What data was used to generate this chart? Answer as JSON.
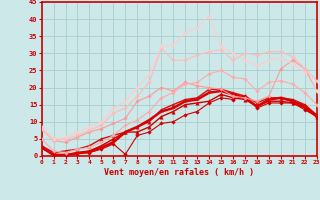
{
  "title": "",
  "xlabel": "Vent moyen/en rafales ( km/h )",
  "background_color": "#cce8e8",
  "grid_color": "#aacccc",
  "x_values": [
    0,
    1,
    2,
    3,
    4,
    5,
    6,
    7,
    8,
    9,
    10,
    11,
    12,
    13,
    14,
    15,
    16,
    17,
    18,
    19,
    20,
    21,
    22,
    23
  ],
  "ylim": [
    0,
    45
  ],
  "xlim": [
    0,
    23
  ],
  "yticks": [
    0,
    5,
    10,
    15,
    20,
    25,
    30,
    35,
    40,
    45
  ],
  "series": [
    {
      "y": [
        2.5,
        0.5,
        0.3,
        0.8,
        1.0,
        2.0,
        3.5,
        0.5,
        6.0,
        7.0,
        9.5,
        10.0,
        12.0,
        13.0,
        15.5,
        17.0,
        16.5,
        17.5,
        14.0,
        15.5,
        15.5,
        15.5,
        13.5,
        11.5
      ],
      "color": "#cc0000",
      "lw": 0.8,
      "marker": "D",
      "ms": 1.8
    },
    {
      "y": [
        2.5,
        0.5,
        0.3,
        1.0,
        1.5,
        3.0,
        5.0,
        7.0,
        7.0,
        8.5,
        11.5,
        13.0,
        15.0,
        15.5,
        16.0,
        18.0,
        17.0,
        16.5,
        14.5,
        16.0,
        16.0,
        15.5,
        14.0,
        11.5
      ],
      "color": "#cc0000",
      "lw": 1.0,
      "marker": "^",
      "ms": 2.5
    },
    {
      "y": [
        3.0,
        1.0,
        1.5,
        2.0,
        3.0,
        5.0,
        6.0,
        7.0,
        8.5,
        10.0,
        13.5,
        15.0,
        16.5,
        17.0,
        19.5,
        19.5,
        18.5,
        17.5,
        15.5,
        17.0,
        17.0,
        16.5,
        15.0,
        12.0
      ],
      "color": "#cc1111",
      "lw": 1.0,
      "marker": "^",
      "ms": 2.5
    },
    {
      "y": [
        2.5,
        0.3,
        0.3,
        0.8,
        1.2,
        2.5,
        4.0,
        7.0,
        8.5,
        10.5,
        13.0,
        14.0,
        16.0,
        16.5,
        18.5,
        19.0,
        18.0,
        17.0,
        14.5,
        16.5,
        17.0,
        16.0,
        14.5,
        11.5
      ],
      "color": "#dd0000",
      "lw": 1.8,
      "marker": null,
      "ms": 0
    },
    {
      "y": [
        8.0,
        4.5,
        4.0,
        5.5,
        7.0,
        8.0,
        9.5,
        11.0,
        16.0,
        17.5,
        20.0,
        19.0,
        21.5,
        20.5,
        20.0,
        19.5,
        17.5,
        17.0,
        16.0,
        17.5,
        25.5,
        28.0,
        25.5,
        19.0
      ],
      "color": "#ff9999",
      "lw": 0.8,
      "marker": "D",
      "ms": 1.8
    },
    {
      "y": [
        5.0,
        1.5,
        1.0,
        2.0,
        2.5,
        4.0,
        6.0,
        9.0,
        10.5,
        13.0,
        17.0,
        18.5,
        21.0,
        21.5,
        24.0,
        25.0,
        23.0,
        22.5,
        19.0,
        21.5,
        22.0,
        21.0,
        18.5,
        15.0
      ],
      "color": "#ffaaaa",
      "lw": 0.8,
      "marker": "D",
      "ms": 1.8
    },
    {
      "y": [
        8.0,
        4.5,
        5.0,
        6.0,
        7.5,
        9.0,
        12.5,
        14.0,
        17.5,
        21.5,
        31.5,
        28.0,
        28.0,
        29.5,
        30.5,
        31.0,
        28.0,
        30.0,
        29.5,
        30.5,
        30.5,
        29.0,
        25.5,
        22.0
      ],
      "color": "#ffbbbb",
      "lw": 0.8,
      "marker": "D",
      "ms": 1.8
    },
    {
      "y": [
        8.5,
        5.0,
        5.5,
        7.0,
        8.5,
        10.0,
        14.0,
        16.0,
        20.0,
        24.0,
        32.0,
        32.5,
        36.0,
        37.5,
        41.0,
        32.0,
        30.0,
        28.0,
        26.5,
        28.0,
        28.5,
        27.0,
        24.5,
        19.0
      ],
      "color": "#ffcccc",
      "lw": 0.8,
      "marker": "D",
      "ms": 1.8
    }
  ]
}
